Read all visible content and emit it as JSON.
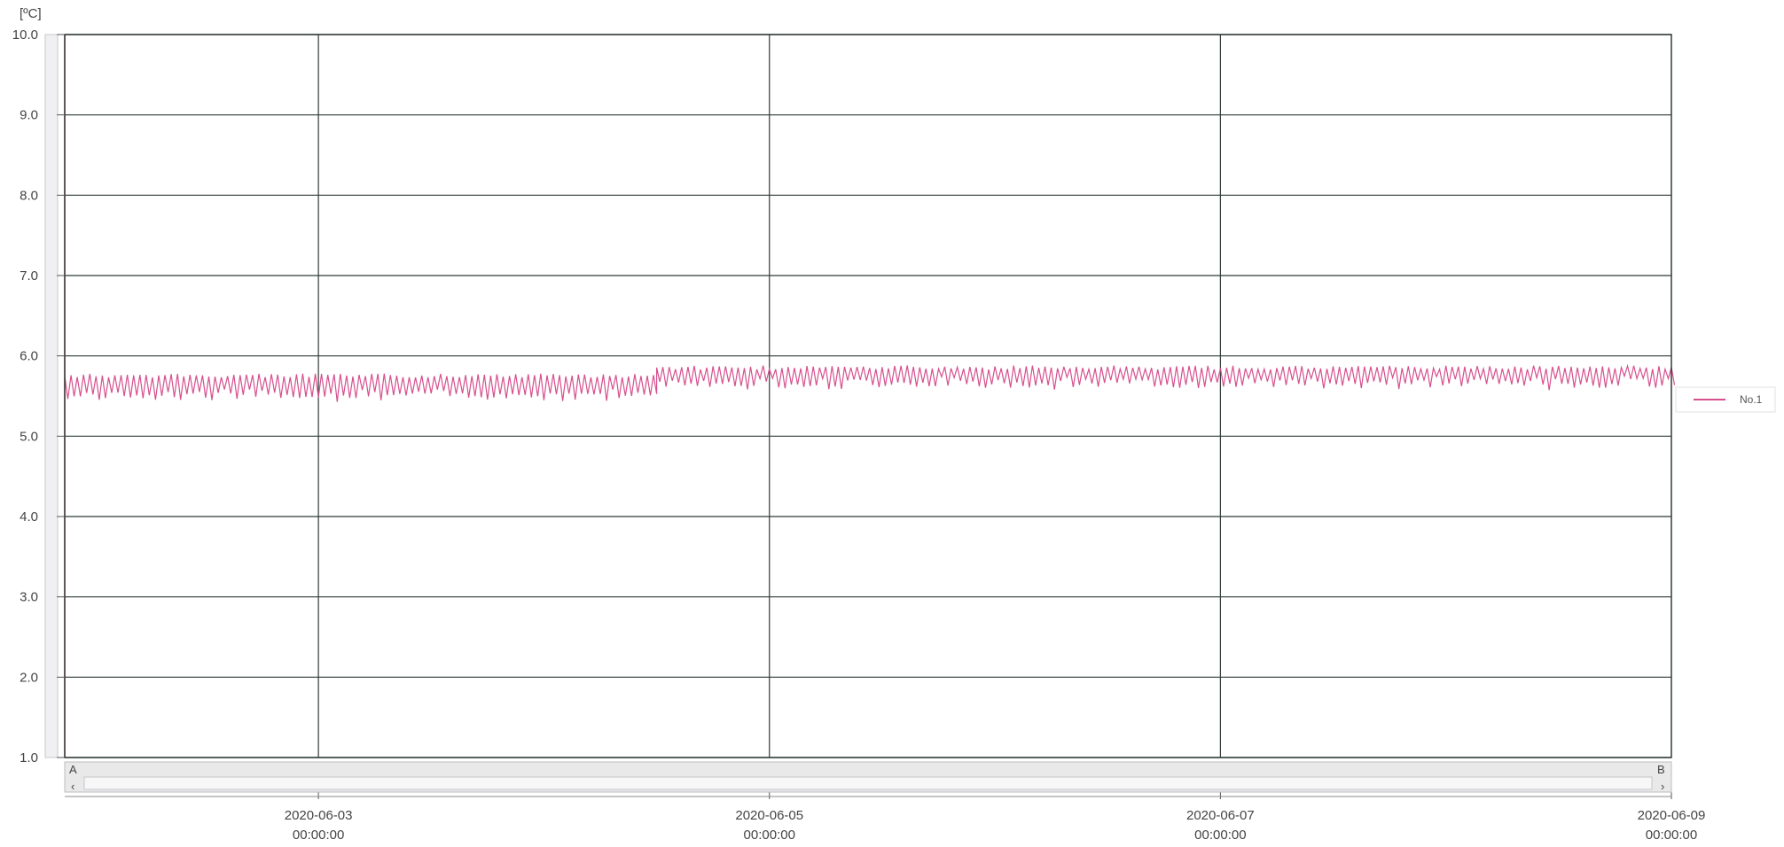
{
  "chart_data": {
    "type": "line",
    "ylabel": "[ºC]",
    "ylim": [
      1.0,
      10.0
    ],
    "y_ticks": [
      "10.0",
      "9.0",
      "8.0",
      "7.0",
      "6.0",
      "5.0",
      "4.0",
      "3.0",
      "2.0",
      "1.0"
    ],
    "xlim": [
      "2020-06-01 21:00:00",
      "2020-06-09 00:00:00"
    ],
    "x_ticks": [
      {
        "date": "2020-06-03",
        "time": "00:00:00"
      },
      {
        "date": "2020-06-05",
        "time": "00:00:00"
      },
      {
        "date": "2020-06-07",
        "time": "00:00:00"
      },
      {
        "date": "2020-06-09",
        "time": "00:00:00"
      }
    ],
    "grid": true,
    "legend_position": "right",
    "series": [
      {
        "name": "No.1",
        "color": "#d6508f",
        "pattern": "oscillating",
        "segments": [
          {
            "from": "2020-06-01 21:00:00",
            "to": "2020-06-04 12:00:00",
            "min": 5.45,
            "max": 5.78,
            "mean": 5.6
          },
          {
            "from": "2020-06-04 12:00:00",
            "to": "2020-06-09 00:00:00",
            "min": 5.6,
            "max": 5.88,
            "mean": 5.74
          }
        ]
      }
    ]
  },
  "scrollbar": {
    "start_marker": "A",
    "end_marker": "B"
  }
}
